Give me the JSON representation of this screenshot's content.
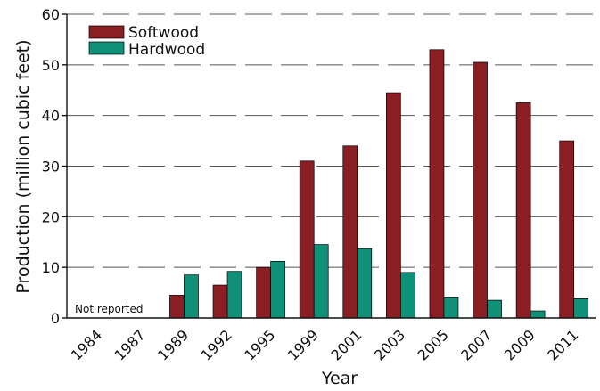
{
  "chart_data": {
    "type": "bar",
    "title": "",
    "xlabel": "Year",
    "ylabel": "Production (million cubic feet)",
    "ylim": [
      0,
      60
    ],
    "yticks": [
      0,
      10,
      20,
      30,
      40,
      50,
      60
    ],
    "grid": true,
    "legend_position": "top-left",
    "categories": [
      "1984",
      "1987",
      "1989",
      "1992",
      "1995",
      "1999",
      "2001",
      "2003",
      "2005",
      "2007",
      "2009",
      "2011"
    ],
    "series": [
      {
        "name": "Softwood",
        "color": "#8b1e22",
        "values": [
          null,
          null,
          4.5,
          6.5,
          10,
          31,
          34,
          44.5,
          53,
          50.5,
          42.5,
          35
        ]
      },
      {
        "name": "Hardwood",
        "color": "#0f9078",
        "values": [
          null,
          null,
          8.5,
          9.2,
          11.2,
          14.5,
          13.7,
          9,
          4,
          3.5,
          1.4,
          3.8
        ]
      }
    ],
    "annotations": [
      {
        "text": "Not reported"
      }
    ]
  }
}
